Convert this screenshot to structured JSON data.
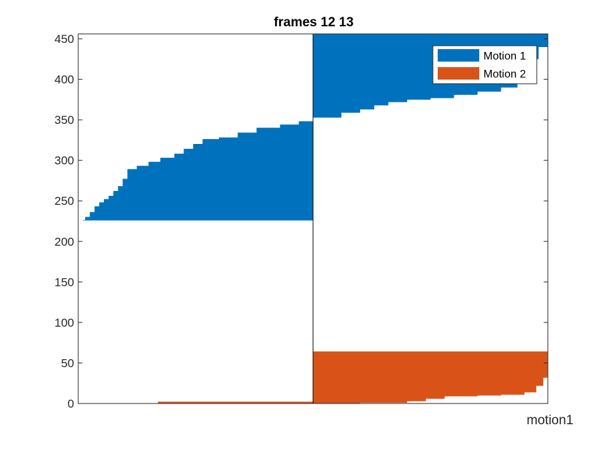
{
  "chart_data": {
    "type": "area",
    "title": "frames 12 13",
    "xlabel": "motion1",
    "ylabel": "",
    "ylim": [
      0,
      456
    ],
    "yticks": [
      0,
      50,
      100,
      150,
      200,
      250,
      300,
      350,
      400,
      450
    ],
    "xtick_labels_shown": false,
    "x_domain": [
      0,
      1
    ],
    "divider_x": 0.5,
    "grid": false,
    "legend_position": "top-right",
    "colors": {
      "Motion 1": "#0072BD",
      "Motion 2": "#D95319",
      "axis": "#262626"
    },
    "series": [
      {
        "name": "Motion 1",
        "regions": [
          {
            "x_range": [
              0.01,
              0.5
            ],
            "baseline": 226,
            "top_points": [
              [
                0.01,
                226
              ],
              [
                0.015,
                230
              ],
              [
                0.025,
                236
              ],
              [
                0.035,
                243
              ],
              [
                0.045,
                248
              ],
              [
                0.055,
                252
              ],
              [
                0.065,
                256
              ],
              [
                0.075,
                262
              ],
              [
                0.085,
                268
              ],
              [
                0.095,
                277
              ],
              [
                0.105,
                289
              ],
              [
                0.125,
                293
              ],
              [
                0.15,
                298
              ],
              [
                0.175,
                303
              ],
              [
                0.205,
                308
              ],
              [
                0.225,
                314
              ],
              [
                0.245,
                320
              ],
              [
                0.265,
                326
              ],
              [
                0.3,
                328
              ],
              [
                0.34,
                334
              ],
              [
                0.38,
                340
              ],
              [
                0.43,
                344
              ],
              [
                0.47,
                348
              ],
              [
                0.5,
                353
              ]
            ]
          },
          {
            "x_range": [
              0.5,
              1.0
            ],
            "baseline": 456,
            "bottom_points": [
              [
                0.5,
                353
              ],
              [
                0.56,
                359
              ],
              [
                0.6,
                363
              ],
              [
                0.63,
                368
              ],
              [
                0.66,
                372
              ],
              [
                0.7,
                375
              ],
              [
                0.75,
                377
              ],
              [
                0.8,
                381
              ],
              [
                0.85,
                385
              ],
              [
                0.9,
                390
              ],
              [
                0.935,
                398
              ],
              [
                0.95,
                410
              ],
              [
                0.965,
                425
              ],
              [
                0.98,
                440
              ],
              [
                1.0,
                456
              ]
            ]
          }
        ]
      },
      {
        "name": "Motion 2",
        "regions": [
          {
            "x_range": [
              0.17,
              0.5
            ],
            "baseline": 0,
            "top_points": [
              [
                0.17,
                2
              ],
              [
                0.5,
                2
              ]
            ]
          },
          {
            "x_range": [
              0.5,
              1.0
            ],
            "baseline": 64,
            "bottom_points": [
              [
                0.5,
                0
              ],
              [
                0.6,
                1
              ],
              [
                0.7,
                3
              ],
              [
                0.74,
                6
              ],
              [
                0.78,
                9
              ],
              [
                0.85,
                10
              ],
              [
                0.9,
                11
              ],
              [
                0.95,
                14
              ],
              [
                0.975,
                22
              ],
              [
                0.99,
                32
              ],
              [
                1.0,
                42
              ]
            ]
          }
        ]
      }
    ]
  }
}
